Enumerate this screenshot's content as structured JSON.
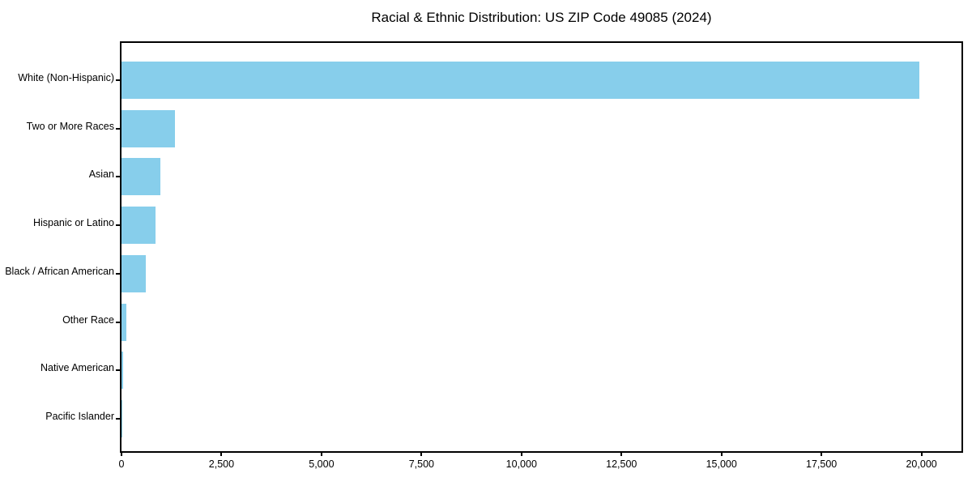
{
  "chart_data": {
    "type": "bar",
    "orientation": "horizontal",
    "title": "Racial & Ethnic Distribution: US ZIP Code 49085 (2024)",
    "categories": [
      "White (Non-Hispanic)",
      "Two or More Races",
      "Asian",
      "Hispanic or Latino",
      "Black / African American",
      "Other Race",
      "Native American",
      "Pacific Islander"
    ],
    "values": [
      19950,
      1340,
      980,
      850,
      610,
      130,
      35,
      10
    ],
    "xlabel": "",
    "ylabel": "",
    "xlim": [
      0,
      21000
    ],
    "xticks": [
      0,
      2500,
      5000,
      7500,
      10000,
      12500,
      15000,
      17500,
      20000
    ],
    "xtick_labels": [
      "0",
      "2,500",
      "5,000",
      "7,500",
      "10,000",
      "12,500",
      "15,000",
      "17,500",
      "20,000"
    ],
    "bar_color": "#87CEEB",
    "grid": false,
    "legend": null
  }
}
